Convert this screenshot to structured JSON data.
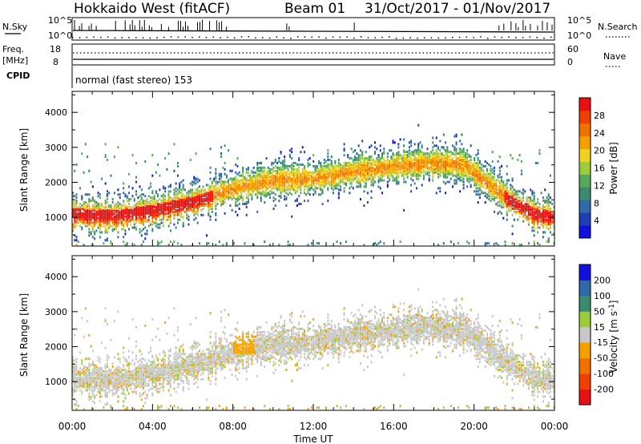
{
  "header": {
    "station": "Hokkaido West (fitACF)",
    "beam": "Beam 01",
    "date_range": "31/Oct/2017 - 01/Nov/2017"
  },
  "strip": {
    "nsky_label": "N.Sky",
    "nsearch_label": "N.Search",
    "n_ticks": [
      "10^5",
      "10^0"
    ],
    "freq_label": "Freq.",
    "freq_unit": "[MHz]",
    "freq_ticks": [
      "18",
      "8"
    ],
    "nave_label": "Nave",
    "nave_ticks": [
      "60",
      "0"
    ],
    "cpid_label": "CPID",
    "cpid_value": "normal (fast stereo) 153"
  },
  "chart_data": [
    {
      "type": "heatmap",
      "panel": "power",
      "ylabel": "Slant Range [km]",
      "y_ticks": [
        "4000",
        "3000",
        "2000",
        "1000"
      ],
      "ylim": [
        180,
        4600
      ],
      "x_ticks": [
        "00:00",
        "04:00",
        "08:00",
        "12:00",
        "16:00",
        "20:00",
        "00:00"
      ],
      "xlim": [
        0,
        24
      ],
      "colorbar": {
        "label": "Power [dB]",
        "ticks": [
          "28",
          "24",
          "20",
          "16",
          "12",
          "8",
          "4"
        ],
        "range": [
          0,
          30
        ]
      },
      "scatter_band_center_km": [
        {
          "x": 0,
          "y": 1100
        },
        {
          "x": 2,
          "y": 1050
        },
        {
          "x": 4,
          "y": 1200
        },
        {
          "x": 6,
          "y": 1450
        },
        {
          "x": 8,
          "y": 1800
        },
        {
          "x": 10,
          "y": 2050
        },
        {
          "x": 12,
          "y": 2100
        },
        {
          "x": 14,
          "y": 2300
        },
        {
          "x": 16,
          "y": 2450
        },
        {
          "x": 18,
          "y": 2550
        },
        {
          "x": 19.5,
          "y": 2500
        },
        {
          "x": 21,
          "y": 1800
        },
        {
          "x": 22,
          "y": 1400
        },
        {
          "x": 23,
          "y": 1100
        },
        {
          "x": 24,
          "y": 1000
        }
      ]
    },
    {
      "type": "heatmap",
      "panel": "velocity",
      "ylabel": "Slant Range [km]",
      "y_ticks": [
        "4000",
        "3000",
        "2000",
        "1000"
      ],
      "ylim": [
        180,
        4600
      ],
      "x_ticks": [
        "00:00",
        "04:00",
        "08:00",
        "12:00",
        "16:00",
        "20:00",
        "00:00"
      ],
      "xlim": [
        0,
        24
      ],
      "xlabel": "Time UT",
      "colorbar": {
        "label": "Velocity [m s",
        "label_exponent": "-1",
        "label_close": "]",
        "ticks": [
          "200",
          "100",
          "50",
          "15",
          "-15",
          "-50",
          "-100",
          "-200"
        ]
      }
    }
  ],
  "colors": {
    "power_scale": [
      "#1010e0",
      "#1e3fb4",
      "#2f6aa8",
      "#3b8c6e",
      "#58a85a",
      "#9ccc3a",
      "#f0d020",
      "#f5a000",
      "#f07000",
      "#f04000",
      "#e81010"
    ],
    "velocity_scale": [
      "#e81010",
      "#f04000",
      "#f07000",
      "#f5a000",
      "#c8c8c8",
      "#9ccc3a",
      "#3b8c6e",
      "#2f6aa8",
      "#1010e0"
    ]
  }
}
